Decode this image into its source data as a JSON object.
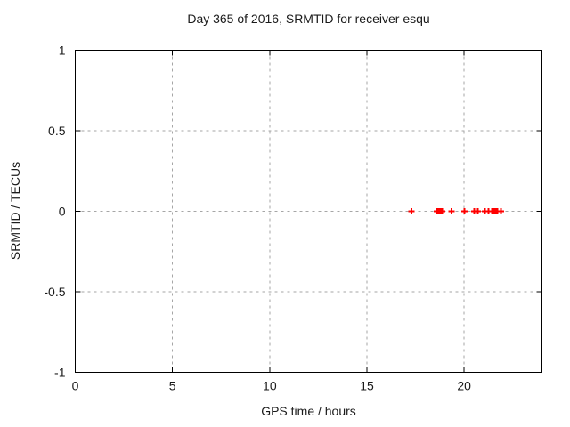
{
  "figure": {
    "title": "Day 365 of 2016, SRMTID for receiver esqu",
    "xlabel": "GPS time / hours",
    "ylabel": "SRMTID / TECUs"
  },
  "chart_data": {
    "type": "scatter",
    "title": "Day 365 of 2016, SRMTID for receiver esqu",
    "xlabel": "GPS time / hours",
    "ylabel": "SRMTID / TECUs",
    "xlim": [
      0,
      24
    ],
    "ylim": [
      -1,
      1
    ],
    "xticks": {
      "values": [
        0,
        5,
        10,
        15,
        20
      ],
      "labels": [
        "0",
        "5",
        "10",
        "15",
        "20"
      ]
    },
    "yticks": {
      "values": [
        1,
        0.5,
        0,
        -0.5,
        -1
      ],
      "labels": [
        "1",
        "0.5",
        "0",
        "-0.5",
        "-1"
      ]
    },
    "grid": true,
    "legend": "none",
    "marker": "plus",
    "colors": {
      "marker": "#ff0000",
      "grid": "#a6a6a6",
      "border": "#000000",
      "background": "#ffffff",
      "text": "#1a1a1a"
    },
    "series": [
      {
        "name": "SRMTID",
        "x": [
          17.28,
          18.6,
          18.65,
          18.7,
          18.74,
          18.79,
          18.83,
          18.88,
          19.34,
          20.02,
          20.53,
          20.71,
          21.08,
          21.26,
          21.44,
          21.49,
          21.53,
          21.58,
          21.62,
          21.67,
          21.71,
          21.9
        ],
        "y": [
          0,
          0,
          0,
          0,
          0,
          0,
          0,
          0,
          0,
          0,
          0,
          0,
          0,
          0,
          0,
          0,
          0,
          0,
          0,
          0,
          0,
          0
        ]
      }
    ]
  }
}
